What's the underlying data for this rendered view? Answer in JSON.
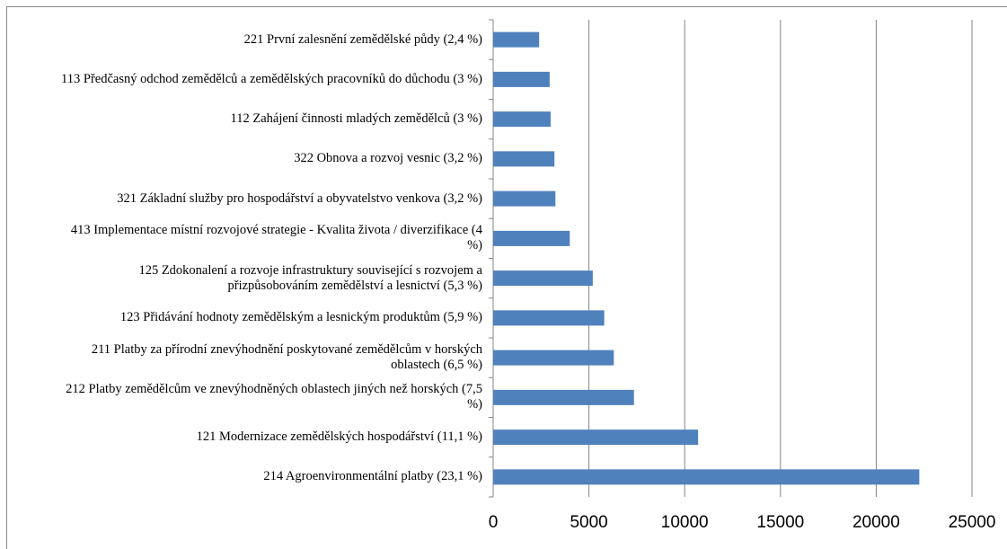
{
  "chart_data": {
    "type": "bar",
    "orientation": "horizontal",
    "categories": [
      "221 První zalesnění zemědělské půdy (2,4 %)",
      "113 Předčasný odchod zemědělců a zemědělských pracovníků do důchodu (3 %)",
      "112 Zahájení činnosti mladých zemědělců (3 %)",
      "322 Obnova a rozvoj vesnic (3,2 %)",
      "321 Základní služby pro hospodářství a obyvatelstvo venkova (3,2 %)",
      "413 Implementace místní rozvojové strategie - Kvalita života / diverzifikace (4 %)",
      "125 Zdokonalení a rozvoje infrastruktury související s rozvojem a přizpůsobováním zemědělství a lesnictví (5,3 %)",
      "123 Přidávání hodnoty zemědělským a lesnickým produktům (5,9 %)",
      "211 Platby za přírodní znevýhodnění poskytované zemědělcům v horských oblastech (6,5 %)",
      "212 Platby zemědělcům ve znevýhodněných oblastech jiných než horských (7,5 %)",
      "121 Modernizace zemědělských hospodářství (11,1 %)",
      "214 Agroenvironmentální platby (23,1 %)"
    ],
    "values": [
      2400,
      2950,
      3000,
      3200,
      3250,
      4000,
      5200,
      5800,
      6300,
      7350,
      10700,
      22250
    ],
    "color": "#4f81bd",
    "xlim": [
      0,
      25000
    ],
    "xticks": [
      0,
      5000,
      10000,
      15000,
      20000,
      25000
    ],
    "grid": true
  }
}
